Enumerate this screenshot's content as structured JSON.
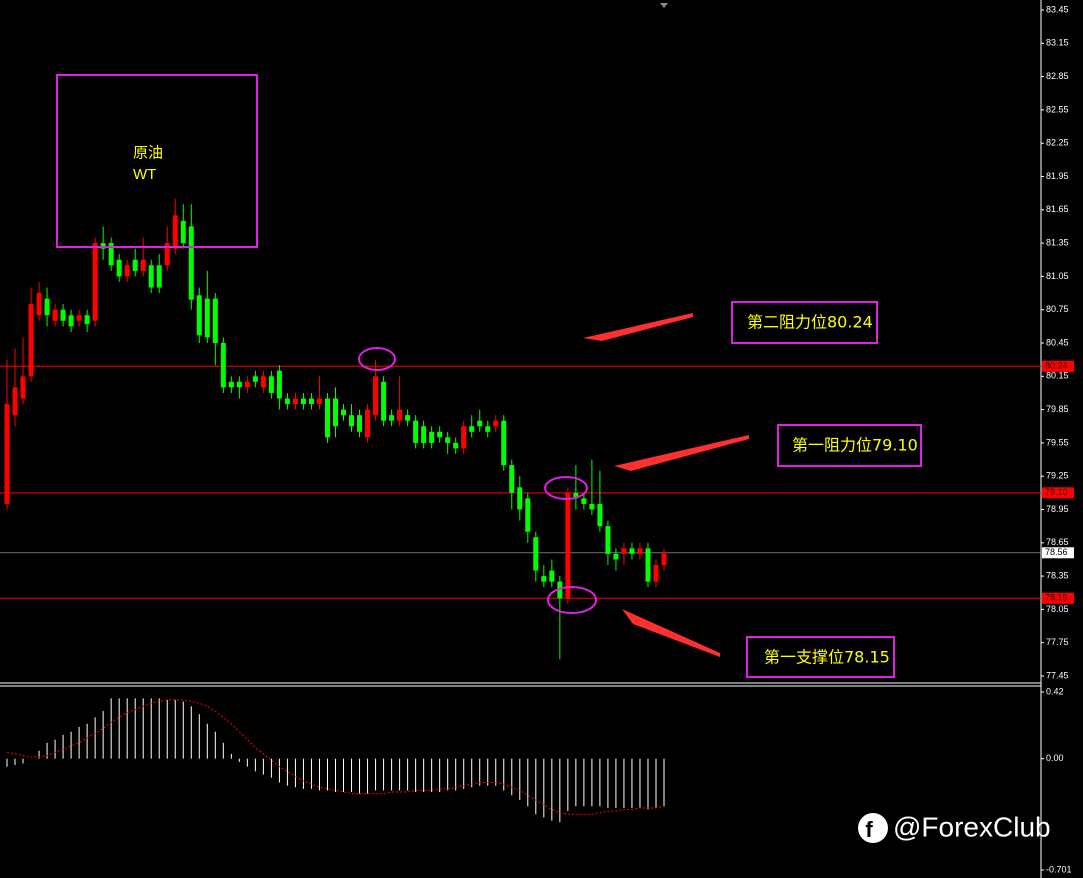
{
  "chart_data": {
    "type": "candlestick",
    "title": "原油",
    "subtitle": "WT",
    "annotations": [
      "第二阻力位80.24",
      "第一阻力位79.10",
      "第一支撑位78.15"
    ],
    "open": [
      79.0,
      79.8,
      79.95,
      80.15,
      80.7,
      80.85,
      80.65,
      80.75,
      80.7,
      80.65,
      80.7,
      80.65,
      81.35,
      81.35,
      81.2,
      81.05,
      81.2,
      81.1,
      81.15,
      81.15,
      81.15,
      81.3,
      81.55,
      81.5,
      80.88,
      80.85,
      80.85,
      80.45,
      80.1,
      80.1,
      80.05,
      80.15,
      80.05,
      80.15,
      80.2,
      79.95,
      79.9,
      79.95,
      79.95,
      79.9,
      79.95,
      79.95,
      79.85,
      79.8,
      79.8,
      79.6,
      79.8,
      80.1,
      79.8,
      79.75,
      79.8,
      79.75,
      79.7,
      79.65,
      79.65,
      79.6,
      79.55,
      79.5,
      79.7,
      79.75,
      79.7,
      79.7,
      79.75,
      79.35,
      79.15,
      79.05,
      78.7,
      78.35,
      78.4,
      78.3,
      78.15,
      79.1,
      79.05,
      79.0,
      79.0,
      78.8,
      78.55,
      78.55,
      78.6,
      78.55,
      78.6,
      78.3,
      78.45
    ],
    "high": [
      80.3,
      80.4,
      80.5,
      80.95,
      81.0,
      80.95,
      80.8,
      80.8,
      80.75,
      80.75,
      80.75,
      81.4,
      81.5,
      81.4,
      81.25,
      81.2,
      81.3,
      81.4,
      81.2,
      81.25,
      81.5,
      81.75,
      81.7,
      81.7,
      80.95,
      81.1,
      80.9,
      80.5,
      80.15,
      80.15,
      80.15,
      80.2,
      80.2,
      80.2,
      80.25,
      80.0,
      80.0,
      80.0,
      80.0,
      80.15,
      80.0,
      80.05,
      79.9,
      79.9,
      79.85,
      79.9,
      80.3,
      80.15,
      79.85,
      80.15,
      79.85,
      79.8,
      79.75,
      79.7,
      79.7,
      79.65,
      79.6,
      79.75,
      79.8,
      79.85,
      79.75,
      79.8,
      79.8,
      79.4,
      79.25,
      79.1,
      78.75,
      78.45,
      78.5,
      78.35,
      79.15,
      79.35,
      79.1,
      79.4,
      79.3,
      78.85,
      78.6,
      78.65,
      78.65,
      78.65,
      78.65,
      78.5,
      78.6
    ],
    "low": [
      78.95,
      79.7,
      79.9,
      80.1,
      80.65,
      80.6,
      80.6,
      80.6,
      80.55,
      80.6,
      80.55,
      80.6,
      81.2,
      81.1,
      81.0,
      81.0,
      81.05,
      81.05,
      80.9,
      80.9,
      81.1,
      81.25,
      81.3,
      80.75,
      80.45,
      80.45,
      80.25,
      80.0,
      80.0,
      79.95,
      80.0,
      80.05,
      80.0,
      79.95,
      79.85,
      79.85,
      79.85,
      79.85,
      79.85,
      79.85,
      79.55,
      79.6,
      79.75,
      79.65,
      79.6,
      79.55,
      79.75,
      79.7,
      79.7,
      79.7,
      79.7,
      79.5,
      79.5,
      79.5,
      79.55,
      79.45,
      79.45,
      79.45,
      79.6,
      79.65,
      79.6,
      79.65,
      79.3,
      78.95,
      78.85,
      78.65,
      78.3,
      78.25,
      78.25,
      77.6,
      78.1,
      78.95,
      78.95,
      78.9,
      78.75,
      78.45,
      78.4,
      78.45,
      78.5,
      78.5,
      78.25,
      78.25,
      78.4
    ],
    "close": [
      79.9,
      80.05,
      80.15,
      80.8,
      80.9,
      80.7,
      80.75,
      80.65,
      80.6,
      80.7,
      80.62,
      81.35,
      81.3,
      81.15,
      81.05,
      81.15,
      81.1,
      81.2,
      80.95,
      80.95,
      81.35,
      81.6,
      81.35,
      80.84,
      80.52,
      80.5,
      80.45,
      80.05,
      80.05,
      80.05,
      80.1,
      80.1,
      80.15,
      80.0,
      79.95,
      79.9,
      79.95,
      79.9,
      79.9,
      79.95,
      79.6,
      79.7,
      79.8,
      79.7,
      79.65,
      79.85,
      80.15,
      79.75,
      79.75,
      79.85,
      79.75,
      79.55,
      79.55,
      79.55,
      79.6,
      79.55,
      79.5,
      79.7,
      79.65,
      79.7,
      79.65,
      79.75,
      79.35,
      79.1,
      78.95,
      78.75,
      78.4,
      78.3,
      78.3,
      78.15,
      79.1,
      79.05,
      79.0,
      78.95,
      78.8,
      78.55,
      78.5,
      78.6,
      78.55,
      78.6,
      78.3,
      78.45,
      78.56
    ],
    "up_color": "#ff0000",
    "down_color": "#00ff00",
    "wick_color": "#00ff00",
    "ylim": [
      77.45,
      83.45
    ],
    "yticks": [
      83.45,
      83.15,
      82.85,
      82.55,
      82.25,
      81.95,
      81.65,
      81.35,
      81.05,
      80.75,
      80.45,
      80.15,
      79.85,
      79.55,
      79.25,
      78.95,
      78.65,
      78.35,
      78.05,
      77.75,
      77.45
    ],
    "levels": [
      80.24,
      {
        "value": 79.1,
        "label": "79.10"
      },
      78.15
    ],
    "level_color": "#ff0000",
    "last_price": 78.56,
    "last_price_color": "#b0b0b0",
    "indicator": {
      "type": "macd",
      "histogram": [
        -0.05,
        -0.04,
        -0.03,
        0.0,
        0.05,
        0.1,
        0.12,
        0.15,
        0.17,
        0.2,
        0.22,
        0.26,
        0.3,
        0.38,
        0.38,
        0.38,
        0.38,
        0.38,
        0.38,
        0.38,
        0.37,
        0.37,
        0.36,
        0.33,
        0.28,
        0.22,
        0.17,
        0.1,
        0.03,
        -0.02,
        -0.05,
        -0.08,
        -0.1,
        -0.12,
        -0.15,
        -0.17,
        -0.18,
        -0.19,
        -0.19,
        -0.2,
        -0.2,
        -0.21,
        -0.21,
        -0.21,
        -0.22,
        -0.22,
        -0.2,
        -0.2,
        -0.2,
        -0.2,
        -0.2,
        -0.21,
        -0.21,
        -0.21,
        -0.21,
        -0.2,
        -0.2,
        -0.19,
        -0.18,
        -0.17,
        -0.17,
        -0.17,
        -0.2,
        -0.23,
        -0.26,
        -0.3,
        -0.35,
        -0.37,
        -0.39,
        -0.4,
        -0.33,
        -0.3,
        -0.3,
        -0.3,
        -0.3,
        -0.31,
        -0.31,
        -0.31,
        -0.31,
        -0.31,
        -0.32,
        -0.31,
        -0.3
      ],
      "signal": [
        0.04,
        0.03,
        0.02,
        0.01,
        0.01,
        0.02,
        0.04,
        0.06,
        0.08,
        0.1,
        0.13,
        0.16,
        0.19,
        0.23,
        0.26,
        0.29,
        0.31,
        0.33,
        0.35,
        0.36,
        0.37,
        0.37,
        0.37,
        0.36,
        0.35,
        0.33,
        0.3,
        0.26,
        0.22,
        0.17,
        0.12,
        0.07,
        0.03,
        -0.01,
        -0.05,
        -0.08,
        -0.11,
        -0.14,
        -0.16,
        -0.18,
        -0.19,
        -0.2,
        -0.21,
        -0.22,
        -0.22,
        -0.22,
        -0.22,
        -0.22,
        -0.21,
        -0.21,
        -0.21,
        -0.2,
        -0.2,
        -0.2,
        -0.19,
        -0.19,
        -0.18,
        -0.17,
        -0.16,
        -0.15,
        -0.15,
        -0.15,
        -0.16,
        -0.18,
        -0.2,
        -0.23,
        -0.26,
        -0.29,
        -0.32,
        -0.34,
        -0.35,
        -0.35,
        -0.35,
        -0.35,
        -0.34,
        -0.33,
        -0.33,
        -0.32,
        -0.32,
        -0.31,
        -0.31,
        -0.31,
        -0.3
      ],
      "histogram_color": "#ffffff",
      "signal_color": "#ff0000",
      "ylim": [
        -0.701,
        0.42
      ],
      "yticks": [
        0.42,
        {
          "value": 0,
          "label": "0.00"
        },
        -0.701
      ]
    }
  },
  "watermark": "@ForexClub"
}
